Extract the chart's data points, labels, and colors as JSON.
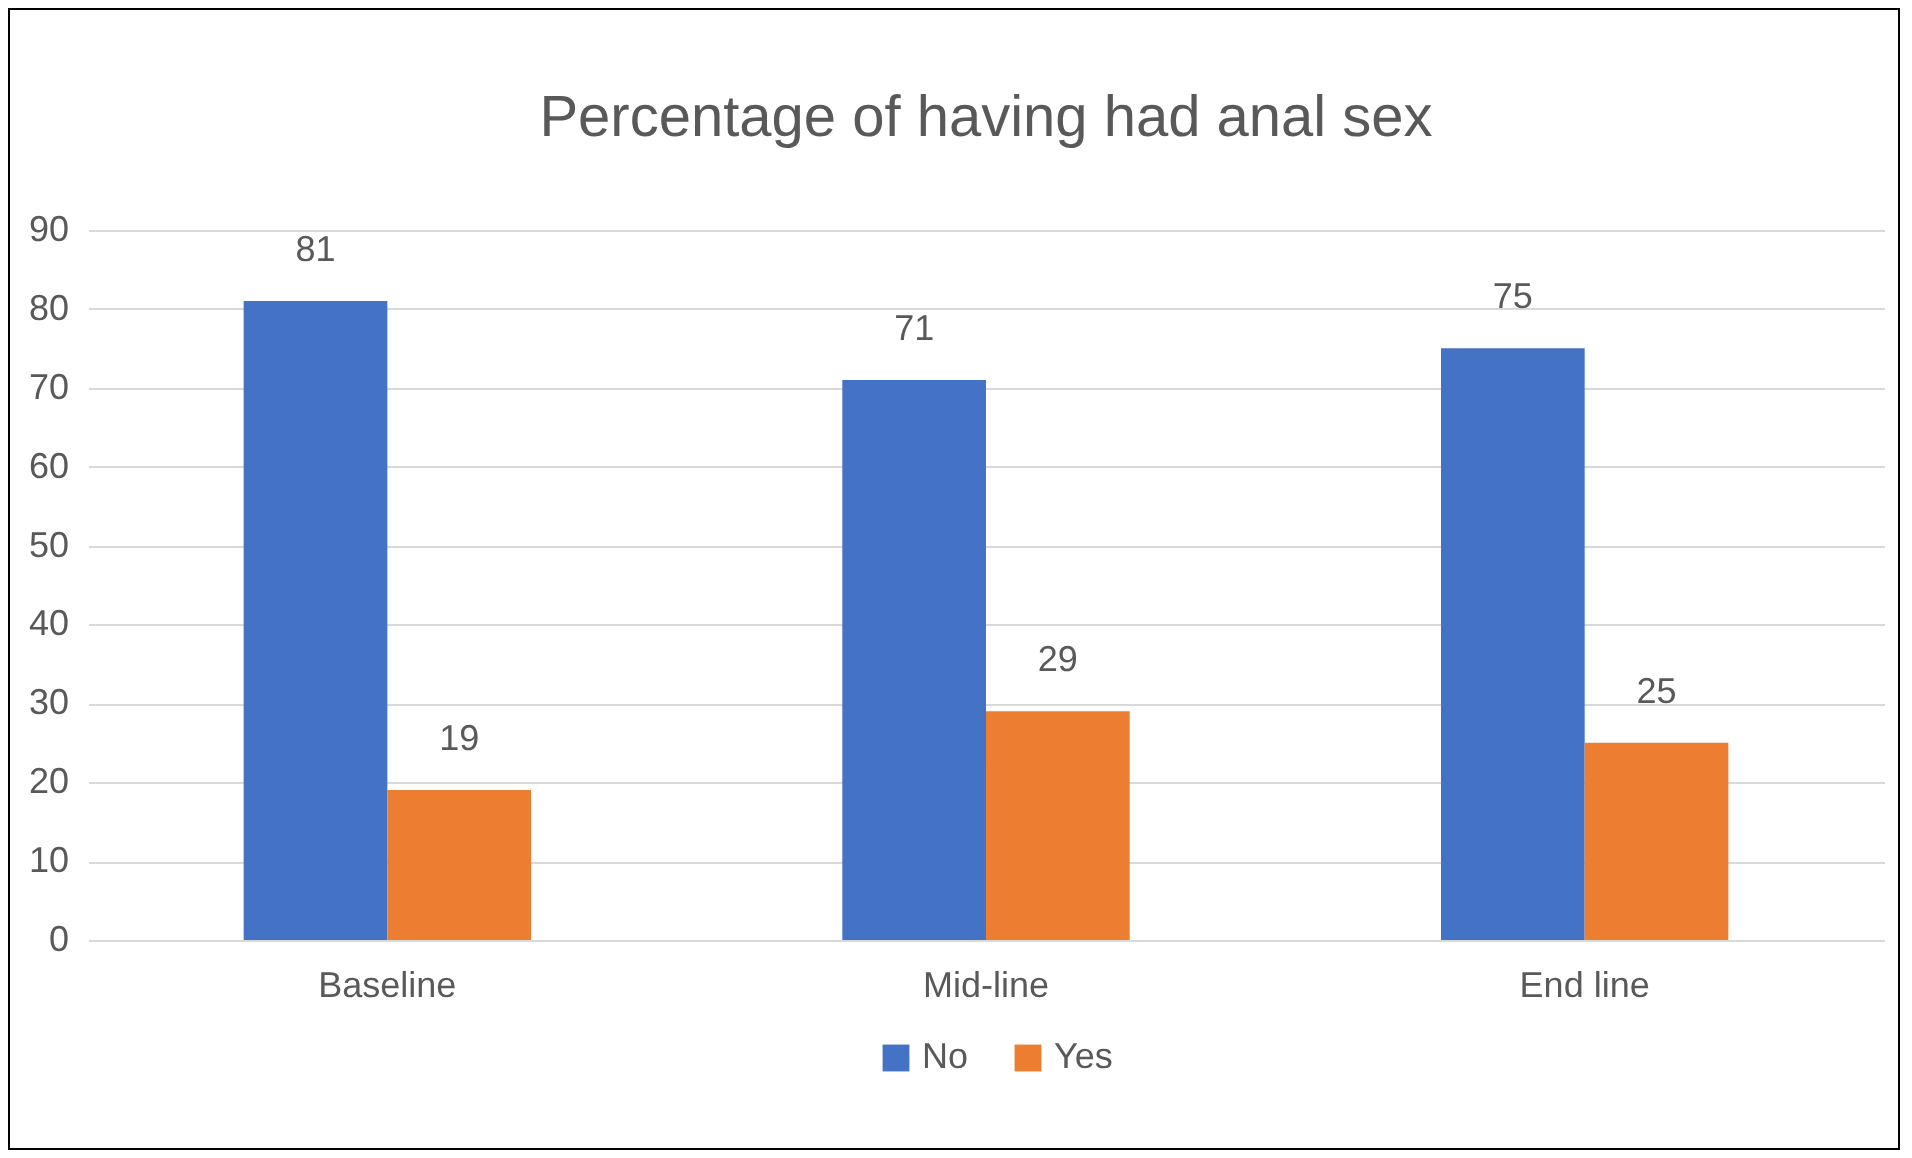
{
  "chart_data": {
    "type": "bar",
    "title": "Percentage of having had anal sex",
    "categories": [
      "Baseline",
      "Mid-line",
      "End line"
    ],
    "series": [
      {
        "name": "No",
        "color": "#4472c4",
        "values": [
          81,
          71,
          75
        ]
      },
      {
        "name": "Yes",
        "color": "#ed7d31",
        "values": [
          19,
          29,
          25
        ]
      }
    ],
    "ylim": [
      0,
      90
    ],
    "yticks": [
      0,
      10,
      20,
      30,
      40,
      50,
      60,
      70,
      80,
      90
    ],
    "grid": "y",
    "legend": "bottom",
    "data_labels": true
  }
}
